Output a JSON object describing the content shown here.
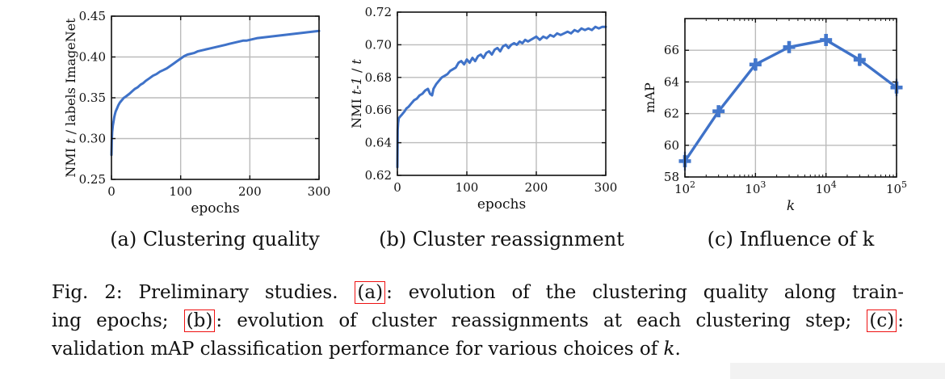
{
  "figure": {
    "subcaptions": [
      "(a) Clustering quality",
      "(b) Cluster reassignment",
      "(c) Influence of k"
    ],
    "caption_lines": [
      {
        "segments": [
          {
            "t": "Fig. 2: Preliminary studies. "
          },
          {
            "t": "(a)",
            "box": true
          },
          {
            "t": ": evolution of the clustering quality along train-"
          }
        ]
      },
      {
        "segments": [
          {
            "t": "ing epochs; "
          },
          {
            "t": "(b)",
            "box": true
          },
          {
            "t": ": evolution of cluster reassignments at each clustering step; "
          },
          {
            "t": "(c)",
            "box": true
          },
          {
            "t": ":"
          }
        ]
      },
      {
        "segments": [
          {
            "t": "validation mAP classification performance for various choices of "
          },
          {
            "t": "k",
            "italic": true
          },
          {
            "t": "."
          }
        ]
      }
    ]
  },
  "colors": {
    "line": "#3f72c8",
    "marker": "#4377cc",
    "errorbar": "#5b85d4",
    "grid": "#bbbbbb",
    "axis": "#111111",
    "refbox_red": "#ee1111",
    "artifact_gray": "#f2f2f2"
  },
  "chart_data": [
    {
      "type": "line",
      "title": "(a) Clustering quality",
      "xlabel": "epochs",
      "ylabel": "NMI t / labels ImageNet",
      "xlim": [
        0,
        300
      ],
      "ylim": [
        0.25,
        0.45
      ],
      "xticks": [
        0,
        100,
        200,
        300
      ],
      "yticks": [
        0.25,
        0.3,
        0.35,
        0.4,
        0.45
      ],
      "ytick_labels": [
        "0.25",
        "0.30",
        "0.35",
        "0.40",
        "0.45"
      ],
      "grid": true,
      "x": [
        0,
        0.5,
        1,
        2,
        3,
        4,
        5,
        6,
        8,
        10,
        12,
        14,
        16,
        18,
        20,
        23,
        26,
        30,
        34,
        38,
        42,
        46,
        50,
        55,
        60,
        65,
        70,
        75,
        80,
        85,
        90,
        95,
        100,
        105,
        110,
        115,
        120,
        125,
        130,
        135,
        140,
        145,
        150,
        155,
        160,
        165,
        170,
        175,
        180,
        185,
        190,
        195,
        200,
        210,
        220,
        230,
        240,
        250,
        260,
        270,
        280,
        290,
        300
      ],
      "y": [
        0.28,
        0.298,
        0.308,
        0.316,
        0.321,
        0.326,
        0.33,
        0.333,
        0.337,
        0.341,
        0.344,
        0.346,
        0.348,
        0.35,
        0.351,
        0.353,
        0.355,
        0.358,
        0.361,
        0.363,
        0.366,
        0.368,
        0.371,
        0.374,
        0.377,
        0.379,
        0.382,
        0.384,
        0.386,
        0.389,
        0.392,
        0.395,
        0.398,
        0.401,
        0.403,
        0.404,
        0.405,
        0.407,
        0.408,
        0.409,
        0.41,
        0.411,
        0.412,
        0.413,
        0.414,
        0.415,
        0.416,
        0.417,
        0.418,
        0.419,
        0.42,
        0.42,
        0.421,
        0.423,
        0.424,
        0.425,
        0.426,
        0.427,
        0.428,
        0.429,
        0.43,
        0.431,
        0.432
      ]
    },
    {
      "type": "line",
      "title": "(b) Cluster reassignment",
      "xlabel": "epochs",
      "ylabel": "NMI t-1 / t",
      "xlim": [
        0,
        300
      ],
      "ylim": [
        0.62,
        0.72
      ],
      "xticks": [
        0,
        100,
        200,
        300
      ],
      "yticks": [
        0.62,
        0.64,
        0.66,
        0.68,
        0.7,
        0.72
      ],
      "ytick_labels": [
        "0.62",
        "0.64",
        "0.66",
        "0.68",
        "0.70",
        "0.72"
      ],
      "grid": true,
      "x": [
        0,
        0.5,
        1,
        2,
        4,
        6,
        8,
        10,
        13,
        16,
        20,
        24,
        28,
        32,
        36,
        40,
        44,
        47,
        50,
        52,
        56,
        60,
        64,
        68,
        72,
        76,
        80,
        84,
        88,
        92,
        96,
        100,
        104,
        108,
        112,
        116,
        120,
        124,
        128,
        132,
        136,
        140,
        144,
        148,
        152,
        156,
        160,
        164,
        168,
        172,
        176,
        180,
        184,
        188,
        192,
        196,
        200,
        205,
        210,
        215,
        220,
        225,
        230,
        235,
        240,
        245,
        250,
        255,
        260,
        265,
        270,
        275,
        280,
        285,
        290,
        295,
        300
      ],
      "y": [
        0.625,
        0.648,
        0.652,
        0.655,
        0.656,
        0.657,
        0.658,
        0.659,
        0.661,
        0.662,
        0.664,
        0.666,
        0.667,
        0.669,
        0.67,
        0.672,
        0.673,
        0.67,
        0.669,
        0.673,
        0.676,
        0.678,
        0.68,
        0.681,
        0.682,
        0.684,
        0.685,
        0.686,
        0.689,
        0.69,
        0.688,
        0.691,
        0.689,
        0.692,
        0.69,
        0.693,
        0.694,
        0.692,
        0.695,
        0.696,
        0.694,
        0.697,
        0.698,
        0.696,
        0.699,
        0.7,
        0.698,
        0.7,
        0.701,
        0.7,
        0.702,
        0.701,
        0.703,
        0.702,
        0.703,
        0.704,
        0.705,
        0.703,
        0.705,
        0.704,
        0.706,
        0.705,
        0.707,
        0.706,
        0.707,
        0.708,
        0.707,
        0.709,
        0.708,
        0.71,
        0.709,
        0.71,
        0.709,
        0.711,
        0.71,
        0.711,
        0.711
      ]
    },
    {
      "type": "line",
      "title": "(c) Influence of k",
      "xlabel": "k",
      "xlabel_italic": true,
      "ylabel": "mAP",
      "xscale": "log",
      "xlim": [
        100,
        100000
      ],
      "ylim": [
        58,
        68
      ],
      "xticks": [
        100,
        1000,
        10000,
        100000
      ],
      "xtick_labels": [
        {
          "b": "10",
          "e": "2"
        },
        {
          "b": "10",
          "e": "3"
        },
        {
          "b": "10",
          "e": "4"
        },
        {
          "b": "10",
          "e": "5"
        }
      ],
      "yticks": [
        58,
        60,
        62,
        64,
        66
      ],
      "ytick_labels": [
        "58",
        "60",
        "62",
        "64",
        "66"
      ],
      "grid": true,
      "x": [
        100,
        300,
        1000,
        3000,
        10000,
        30000,
        100000
      ],
      "y": [
        59.0,
        62.15,
        65.1,
        66.2,
        66.65,
        65.4,
        63.65
      ],
      "yerr": [
        0.6,
        0.35,
        0.4,
        0.35,
        0.35,
        0.4,
        0.55
      ],
      "marker": "plus"
    }
  ]
}
